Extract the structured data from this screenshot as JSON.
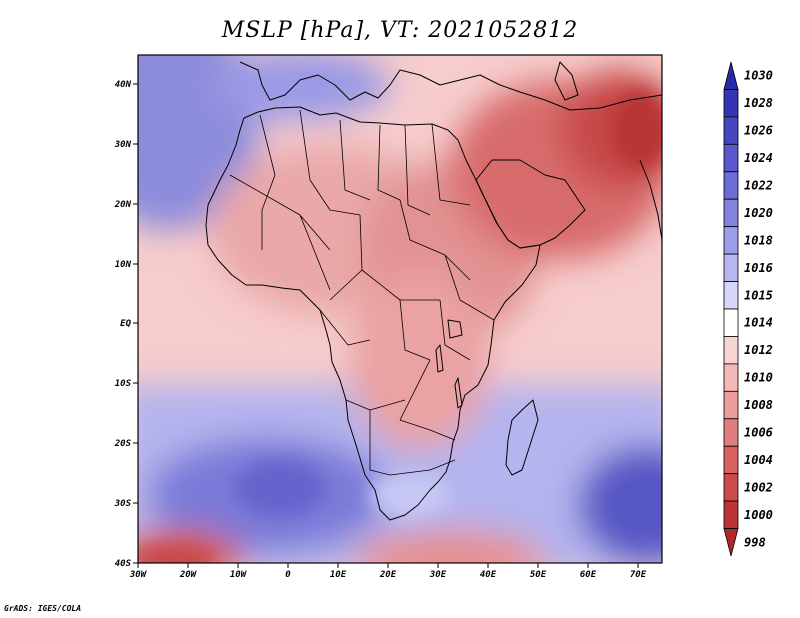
{
  "title": "MSLP [hPa], VT: 2021052812",
  "credit": "GrADS: IGES/COLA",
  "map": {
    "variable": "Mean Sea Level Pressure",
    "units": "hPa",
    "valid_time": "2021052812",
    "lon_range": [
      -30,
      75
    ],
    "lat_range": [
      -40,
      45
    ],
    "x_ticks": [
      "30W",
      "20W",
      "10W",
      "0",
      "10E",
      "20E",
      "30E",
      "40E",
      "50E",
      "60E",
      "70E"
    ],
    "y_ticks": [
      "40N",
      "30N",
      "20N",
      "10N",
      "EQ",
      "10S",
      "20S",
      "30S",
      "40S"
    ]
  },
  "colorbar": {
    "levels": [
      "1030",
      "1028",
      "1026",
      "1024",
      "1022",
      "1020",
      "1018",
      "1016",
      "1015",
      "1014",
      "1012",
      "1010",
      "1008",
      "1006",
      "1004",
      "1002",
      "1000",
      "998"
    ],
    "colors": [
      "#2a2aa8",
      "#3434b4",
      "#4646c0",
      "#5858cc",
      "#6c6cd6",
      "#8484de",
      "#9c9ce8",
      "#b8b8f0",
      "#d6d6f8",
      "#ffffff",
      "#f8d4d4",
      "#f4b8b8",
      "#ec9c9c",
      "#e07e7e",
      "#d86262",
      "#cc4a4a",
      "#be3434",
      "#b02a2a"
    ]
  }
}
